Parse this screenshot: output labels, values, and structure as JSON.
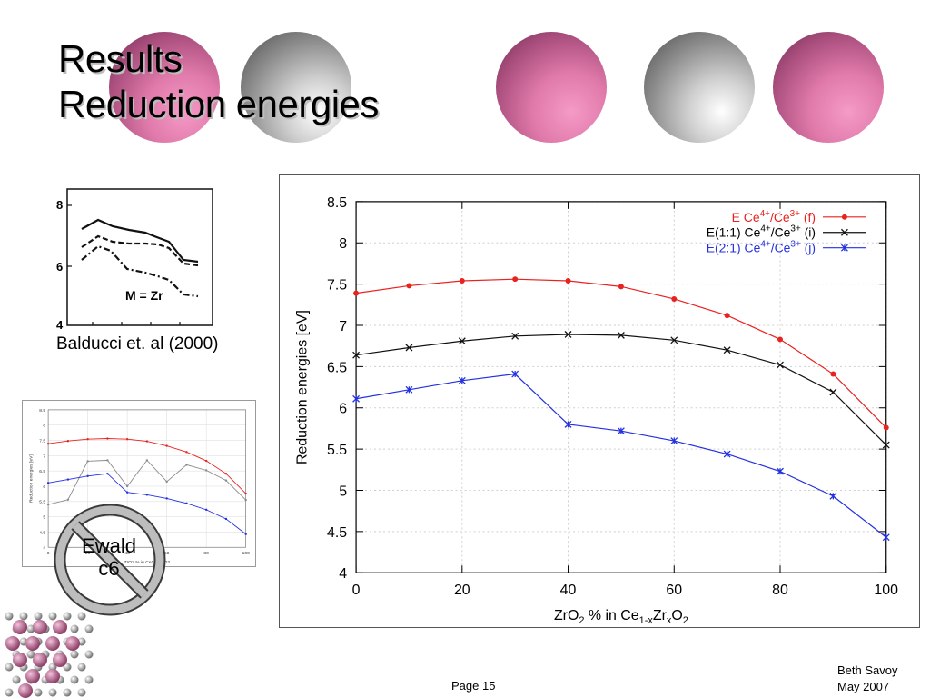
{
  "slide": {
    "title_line1": "Results",
    "title_line2": "Reduction energies",
    "citation": "Balducci et. al (2000)",
    "ewald_line1": "Ewald",
    "ewald_line2": "c6",
    "page": "Page 15",
    "author": "Beth Savoy",
    "date": "May 2007"
  },
  "reference_plot": {
    "y_ticks": [
      "8",
      "6",
      "4"
    ],
    "label": "M = Zr"
  },
  "chart_data": [
    {
      "type": "line",
      "xlabel_parts": [
        "ZrO",
        "2",
        " % in Ce",
        "1-x",
        "Zr",
        "x",
        "O",
        "2"
      ],
      "ylabel": "Reduction energies [eV]",
      "xlim": [
        0,
        100
      ],
      "ylim": [
        4,
        8.5
      ],
      "x_ticks": [
        0,
        20,
        40,
        60,
        80,
        100
      ],
      "y_ticks": [
        4,
        4.5,
        5,
        5.5,
        6,
        6.5,
        7,
        7.5,
        8,
        8.5
      ],
      "grid": true,
      "legend_position": "top-right",
      "x": [
        0,
        10,
        20,
        30,
        40,
        50,
        60,
        70,
        80,
        90,
        100
      ],
      "series": [
        {
          "legend": {
            "pre": "E Ce",
            "sup1": "4+",
            "mid": "/Ce",
            "sup2": "3+",
            "post": " (f)"
          },
          "color": "#e8221f",
          "marker": "dot",
          "values": [
            7.39,
            7.48,
            7.54,
            7.56,
            7.54,
            7.47,
            7.32,
            7.12,
            6.83,
            6.41,
            5.76
          ]
        },
        {
          "legend": {
            "pre": "E(1:1) Ce",
            "sup1": "4+",
            "mid": "/Ce",
            "sup2": "3+",
            "post": " (i)"
          },
          "color": "#111111",
          "marker": "x",
          "values": [
            6.64,
            6.73,
            6.81,
            6.87,
            6.89,
            6.88,
            6.82,
            6.7,
            6.52,
            6.19,
            5.55
          ]
        },
        {
          "legend": {
            "pre": "E(2:1) Ce",
            "sup1": "4+",
            "mid": "/Ce",
            "sup2": "3+",
            "post": " (j)"
          },
          "color": "#2431e0",
          "marker": "star",
          "values": [
            6.11,
            6.22,
            6.33,
            6.41,
            5.8,
            5.72,
            5.6,
            5.44,
            5.23,
            4.93,
            4.43
          ]
        }
      ]
    },
    {
      "type": "line",
      "xlabel": "ZrO2 % in Ce1-xZrxO2",
      "ylabel": "Reduction energies [eV]",
      "xlim": [
        0,
        100
      ],
      "ylim": [
        4,
        8.5
      ],
      "x_ticks": [
        0,
        20,
        40,
        60,
        80,
        100
      ],
      "y_ticks": [
        4,
        4.5,
        5,
        5.5,
        6,
        6.5,
        7,
        7.5,
        8,
        8.5
      ],
      "grid": true,
      "legend_position": "top-right",
      "x": [
        0,
        10,
        20,
        30,
        40,
        50,
        60,
        70,
        80,
        90,
        100
      ],
      "series": [
        {
          "color": "#e8221f",
          "values": [
            7.39,
            7.48,
            7.54,
            7.56,
            7.54,
            7.47,
            7.32,
            7.12,
            6.83,
            6.41,
            5.76
          ]
        },
        {
          "color": "#8a8a8a",
          "values": [
            5.4,
            5.56,
            6.82,
            6.85,
            6.0,
            6.85,
            6.15,
            6.7,
            6.52,
            6.19,
            5.55
          ]
        },
        {
          "color": "#2431e0",
          "values": [
            6.11,
            6.22,
            6.33,
            6.41,
            5.8,
            5.72,
            5.6,
            5.44,
            5.23,
            4.93,
            4.43
          ]
        }
      ]
    }
  ]
}
